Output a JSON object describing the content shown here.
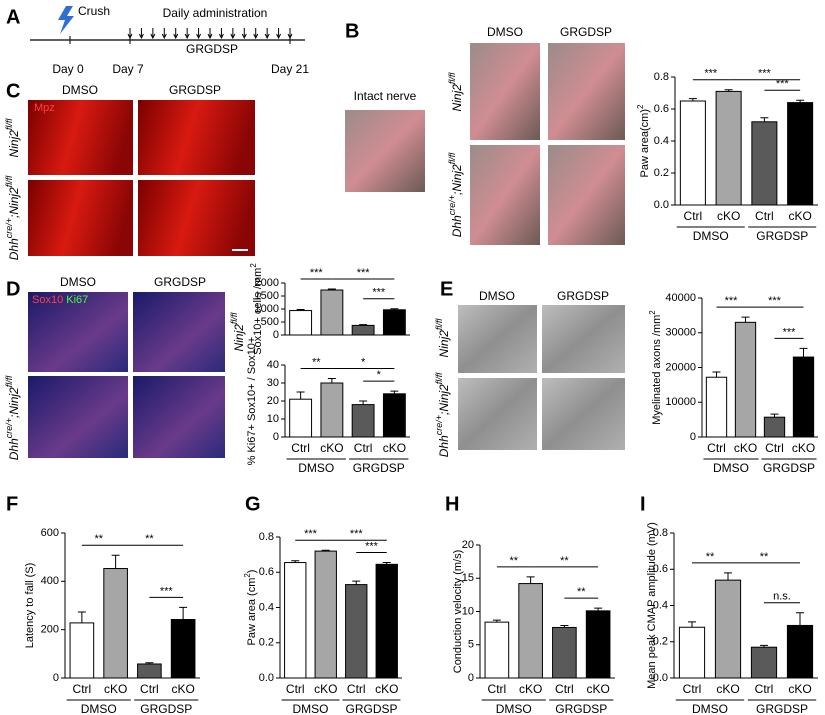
{
  "panels": [
    "A",
    "B",
    "C",
    "D",
    "E",
    "F",
    "G",
    "H",
    "I"
  ],
  "timeline": {
    "crush": "Crush",
    "administration": "Daily administration",
    "drug": "GRGDSP",
    "days": [
      "Day 0",
      "Day 7",
      "Day 21"
    ]
  },
  "images": {
    "columns": [
      "DMSO",
      "GRGDSP"
    ],
    "rows": [
      [
        "Ninj2",
        "fl/fl"
      ],
      [
        "Dhh",
        "cre/+",
        ";Ninj2",
        "fl/fl"
      ]
    ],
    "intact": "Intact nerve",
    "stain_c": "Mpz",
    "stain_d": [
      "Sox10",
      "Ki67"
    ]
  },
  "chart_data": [
    {
      "type": "bar",
      "ylabel": [
        "Paw area(cm)",
        "2"
      ],
      "categories": [
        "Ctrl",
        "cKO",
        "Ctrl",
        "cKO"
      ],
      "groups": [
        "DMSO",
        "GRGDSP"
      ],
      "values": [
        0.65,
        0.71,
        0.52,
        0.64
      ],
      "errors": [
        0.015,
        0.01,
        0.025,
        0.015
      ],
      "colors": [
        "#ffffff",
        "#a6a6a6",
        "#5a5a5a",
        "#000000"
      ],
      "ylim": [
        0,
        0.8
      ],
      "yticks": [
        {
          "value": 0,
          "label": "0.0"
        },
        0.2,
        0.4,
        0.6,
        0.8
      ],
      "significance": [
        {
          "label": "***",
          "from": 0,
          "to": 1
        },
        {
          "label": "***",
          "from": 1,
          "to": 3
        },
        {
          "label": "***",
          "from": 2,
          "to": 3
        }
      ]
    },
    {
      "type": "bar",
      "ylabel": [
        "Sox10+ cells /mm",
        "2"
      ],
      "values": [
        940,
        1730,
        370,
        970
      ],
      "errors": [
        40,
        40,
        30,
        40
      ],
      "colors": [
        "#ffffff",
        "#a6a6a6",
        "#5a5a5a",
        "#000000"
      ],
      "ylim": [
        0,
        2000
      ],
      "yticks": [
        0,
        500,
        1000,
        1500,
        2000
      ],
      "significance": [
        {
          "label": "***",
          "from": 0,
          "to": 1
        },
        {
          "label": "***",
          "from": 1,
          "to": 3
        },
        {
          "label": "***",
          "from": 2,
          "to": 3
        }
      ]
    },
    {
      "type": "bar",
      "ylabel": [
        "% Ki67+ Sox10+ / Sox10+"
      ],
      "categories": [
        "Ctrl",
        "cKO",
        "Ctrl",
        "cKO"
      ],
      "groups": [
        "DMSO",
        "GRGDSP"
      ],
      "values": [
        21,
        30,
        18,
        24
      ],
      "errors": [
        4,
        2.5,
        2,
        1.5
      ],
      "colors": [
        "#ffffff",
        "#a6a6a6",
        "#5a5a5a",
        "#000000"
      ],
      "ylim": [
        0,
        40
      ],
      "yticks": [
        0,
        10,
        20,
        30,
        40
      ],
      "significance": [
        {
          "label": "**",
          "from": 0,
          "to": 1
        },
        {
          "label": "*",
          "from": 1,
          "to": 3
        },
        {
          "label": "*",
          "from": 2,
          "to": 3
        }
      ]
    },
    {
      "type": "bar",
      "ylabel": [
        "Myelinated axons /mm",
        "2"
      ],
      "categories": [
        "Ctrl",
        "cKO",
        "Ctrl",
        "cKO"
      ],
      "groups": [
        "DMSO",
        "GRGDSP"
      ],
      "values": [
        17200,
        33000,
        5700,
        23000
      ],
      "errors": [
        1500,
        1500,
        900,
        2500
      ],
      "colors": [
        "#ffffff",
        "#a6a6a6",
        "#5a5a5a",
        "#000000"
      ],
      "ylim": [
        0,
        40000
      ],
      "yticks": [
        0,
        10000,
        20000,
        30000,
        40000
      ],
      "significance": [
        {
          "label": "***",
          "from": 0,
          "to": 1
        },
        {
          "label": "***",
          "from": 1,
          "to": 3
        },
        {
          "label": "***",
          "from": 2,
          "to": 3
        }
      ]
    },
    {
      "type": "bar",
      "ylabel": [
        "Latency to fall (S)"
      ],
      "categories": [
        "Ctrl",
        "cKO",
        "Ctrl",
        "cKO"
      ],
      "groups": [
        "DMSO",
        "GRGDSP"
      ],
      "values": [
        228,
        453,
        58,
        242
      ],
      "errors": [
        45,
        55,
        5,
        50
      ],
      "colors": [
        "#ffffff",
        "#a6a6a6",
        "#5a5a5a",
        "#000000"
      ],
      "ylim": [
        0,
        600
      ],
      "yticks": [
        0,
        200,
        400,
        600
      ],
      "significance": [
        {
          "label": "**",
          "from": 0,
          "to": 1
        },
        {
          "label": "**",
          "from": 1,
          "to": 3
        },
        {
          "label": "***",
          "from": 2,
          "to": 3
        }
      ]
    },
    {
      "type": "bar",
      "ylabel": [
        "Paw area (cm",
        "2",
        ")"
      ],
      "categories": [
        "Ctrl",
        "cKO",
        "Ctrl",
        "cKO"
      ],
      "groups": [
        "DMSO",
        "GRGDSP"
      ],
      "values": [
        0.655,
        0.72,
        0.53,
        0.645
      ],
      "errors": [
        0.01,
        0.005,
        0.02,
        0.01
      ],
      "colors": [
        "#ffffff",
        "#a6a6a6",
        "#5a5a5a",
        "#000000"
      ],
      "ylim": [
        0,
        0.8
      ],
      "yticks": [
        {
          "value": 0,
          "label": "0.0"
        },
        0.2,
        0.4,
        0.6,
        0.8
      ],
      "significance": [
        {
          "label": "***",
          "from": 0,
          "to": 1
        },
        {
          "label": "***",
          "from": 1,
          "to": 3
        },
        {
          "label": "***",
          "from": 2,
          "to": 3
        }
      ]
    },
    {
      "type": "bar",
      "ylabel": [
        "Conduction velocity (m/s)"
      ],
      "categories": [
        "Ctrl",
        "cKO",
        "Ctrl",
        "cKO"
      ],
      "groups": [
        "DMSO",
        "GRGDSP"
      ],
      "values": [
        8.4,
        14.2,
        7.6,
        10.1
      ],
      "errors": [
        0.3,
        1,
        0.3,
        0.4
      ],
      "colors": [
        "#ffffff",
        "#a6a6a6",
        "#5a5a5a",
        "#000000"
      ],
      "ylim": [
        0,
        20
      ],
      "yticks": [
        0,
        5,
        10,
        15,
        20
      ],
      "significance": [
        {
          "label": "**",
          "from": 0,
          "to": 1
        },
        {
          "label": "**",
          "from": 1,
          "to": 3
        },
        {
          "label": "**",
          "from": 2,
          "to": 3
        }
      ]
    },
    {
      "type": "bar",
      "ylabel": [
        "Mean peak CMAP amplitude (mV)"
      ],
      "categories": [
        "Ctrl",
        "cKO",
        "Ctrl",
        "cKO"
      ],
      "groups": [
        "DMSO",
        "GRGDSP"
      ],
      "values": [
        0.28,
        0.54,
        0.17,
        0.29
      ],
      "errors": [
        0.03,
        0.04,
        0.01,
        0.07
      ],
      "colors": [
        "#ffffff",
        "#a6a6a6",
        "#5a5a5a",
        "#000000"
      ],
      "ylim": [
        0,
        0.8
      ],
      "yticks": [
        {
          "value": 0,
          "label": "0.0"
        },
        0.2,
        0.4,
        0.6,
        0.8
      ],
      "significance": [
        {
          "label": "**",
          "from": 0,
          "to": 1
        },
        {
          "label": "**",
          "from": 1,
          "to": 3
        },
        {
          "label": "n.s.",
          "from": 2,
          "to": 3
        }
      ]
    }
  ]
}
